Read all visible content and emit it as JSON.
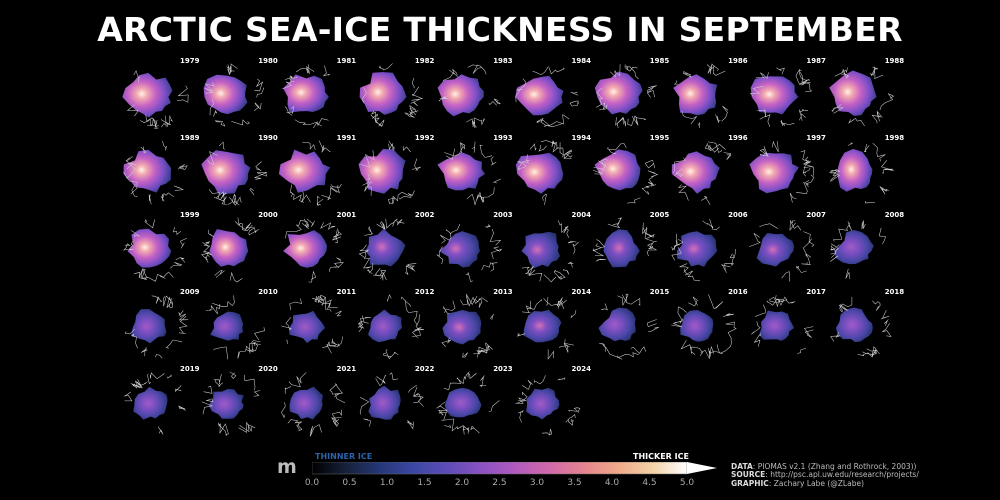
{
  "title": "ARCTIC SEA-ICE THICKNESS IN SEPTEMBER",
  "chart_data": {
    "type": "heatmap",
    "title": "ARCTIC SEA-ICE THICKNESS IN SEPTEMBER",
    "panels": [
      {
        "year": "1979",
        "thickness_level": 0.78
      },
      {
        "year": "1980",
        "thickness_level": 0.76
      },
      {
        "year": "1981",
        "thickness_level": 0.72
      },
      {
        "year": "1982",
        "thickness_level": 0.78
      },
      {
        "year": "1983",
        "thickness_level": 0.8
      },
      {
        "year": "1984",
        "thickness_level": 0.77
      },
      {
        "year": "1985",
        "thickness_level": 0.76
      },
      {
        "year": "1986",
        "thickness_level": 0.74
      },
      {
        "year": "1987",
        "thickness_level": 0.76
      },
      {
        "year": "1988",
        "thickness_level": 0.78
      },
      {
        "year": "1989",
        "thickness_level": 0.8
      },
      {
        "year": "1990",
        "thickness_level": 0.82
      },
      {
        "year": "1991",
        "thickness_level": 0.8
      },
      {
        "year": "1992",
        "thickness_level": 0.79
      },
      {
        "year": "1993",
        "thickness_level": 0.72
      },
      {
        "year": "1994",
        "thickness_level": 0.74
      },
      {
        "year": "1995",
        "thickness_level": 0.7
      },
      {
        "year": "1996",
        "thickness_level": 0.73
      },
      {
        "year": "1997",
        "thickness_level": 0.75
      },
      {
        "year": "1998",
        "thickness_level": 0.68
      },
      {
        "year": "1999",
        "thickness_level": 0.64
      },
      {
        "year": "2000",
        "thickness_level": 0.62
      },
      {
        "year": "2001",
        "thickness_level": 0.63
      },
      {
        "year": "2002",
        "thickness_level": 0.58
      },
      {
        "year": "2003",
        "thickness_level": 0.57
      },
      {
        "year": "2004",
        "thickness_level": 0.55
      },
      {
        "year": "2005",
        "thickness_level": 0.5
      },
      {
        "year": "2006",
        "thickness_level": 0.5
      },
      {
        "year": "2007",
        "thickness_level": 0.42
      },
      {
        "year": "2008",
        "thickness_level": 0.4
      },
      {
        "year": "2009",
        "thickness_level": 0.38
      },
      {
        "year": "2010",
        "thickness_level": 0.34
      },
      {
        "year": "2011",
        "thickness_level": 0.32
      },
      {
        "year": "2012",
        "thickness_level": 0.3
      },
      {
        "year": "2013",
        "thickness_level": 0.42
      },
      {
        "year": "2014",
        "thickness_level": 0.44
      },
      {
        "year": "2015",
        "thickness_level": 0.4
      },
      {
        "year": "2016",
        "thickness_level": 0.36
      },
      {
        "year": "2017",
        "thickness_level": 0.33
      },
      {
        "year": "2018",
        "thickness_level": 0.36
      },
      {
        "year": "2019",
        "thickness_level": 0.33
      },
      {
        "year": "2020",
        "thickness_level": 0.3
      },
      {
        "year": "2021",
        "thickness_level": 0.38
      },
      {
        "year": "2022",
        "thickness_level": 0.36
      },
      {
        "year": "2023",
        "thickness_level": 0.35
      },
      {
        "year": "2024",
        "thickness_level": 0.32
      }
    ],
    "colorbar": {
      "unit": "m",
      "min": 0.0,
      "max": 5.0,
      "ticks": [
        "0.0",
        "0.5",
        "1.0",
        "1.5",
        "2.0",
        "2.5",
        "3.0",
        "3.5",
        "4.0",
        "4.5",
        "5.0"
      ],
      "low_label": "THINNER ICE",
      "high_label": "THICKER ICE",
      "colors": [
        "#000000",
        "#17213a",
        "#253777",
        "#3b48a4",
        "#5f4cb8",
        "#8c52c2",
        "#b35bbd",
        "#d26aa9",
        "#e6858e",
        "#efaa8a",
        "#f3d2a8",
        "#ffffff"
      ]
    }
  },
  "credits": {
    "data_label": "DATA",
    "data_text": ": PIOMAS v2.1 (Zhang and Rothrock, 2003))",
    "source_label": "SOURCE",
    "source_text": ": http://psc.apl.uw.edu/research/projects/",
    "graphic_label": "GRAPHIC",
    "graphic_text": ": Zachary Labe (@ZLabe)"
  }
}
